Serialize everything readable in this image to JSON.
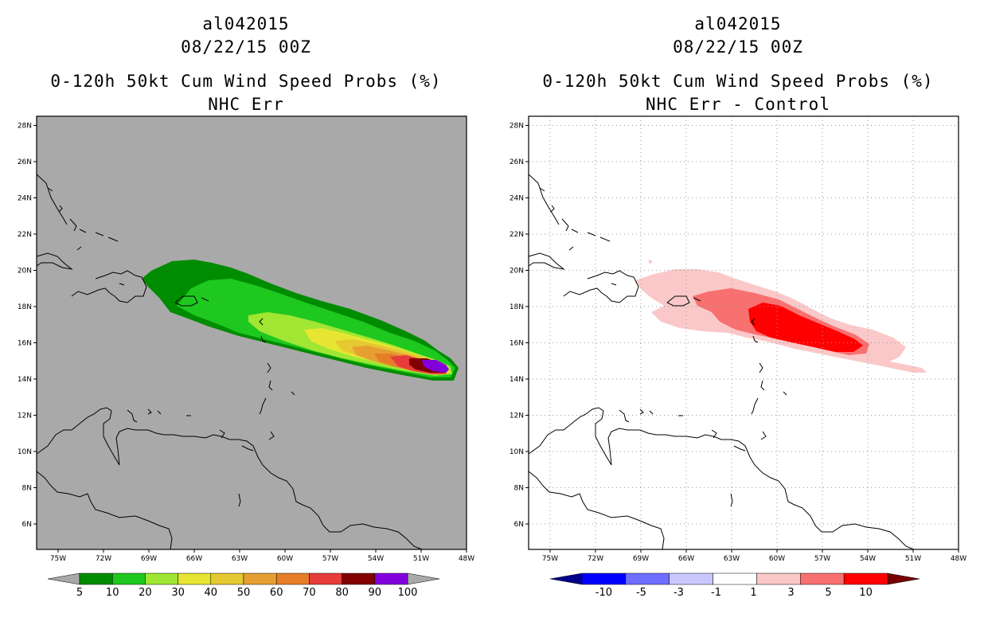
{
  "panels": [
    {
      "storm_id": "al042015",
      "datetime": "08/22/15 00Z",
      "product": "0-120h 50kt Cum Wind Speed Probs (%)",
      "subtitle": "NHC Err",
      "background_color": "#a9a9a9",
      "colorbar": {
        "labels": [
          "5",
          "10",
          "20",
          "30",
          "40",
          "50",
          "60",
          "70",
          "80",
          "90",
          "100"
        ],
        "colors": [
          "#008c00",
          "#1ec81e",
          "#a0e632",
          "#e6e632",
          "#e6c832",
          "#e6a032",
          "#e67e28",
          "#e63c3c",
          "#820000",
          "#8200dc"
        ],
        "end_low_color": "#a9a9a9",
        "end_high_color": "#a9a9a9"
      }
    },
    {
      "storm_id": "al042015",
      "datetime": "08/22/15 00Z",
      "product": "0-120h 50kt Cum Wind Speed Probs (%)",
      "subtitle": "NHC Err - Control",
      "background_color": "#ffffff",
      "colorbar": {
        "labels": [
          "-10",
          "-5",
          "-3",
          "-1",
          "1",
          "3",
          "5",
          "10"
        ],
        "colors": [
          "#0000ff",
          "#6e6eff",
          "#c8c8ff",
          "#ffffff",
          "#fac8c8",
          "#f87070",
          "#ff0000"
        ],
        "end_low_color": "#00008c",
        "end_high_color": "#780000"
      }
    }
  ],
  "axes": {
    "lat_labels": [
      "6N",
      "8N",
      "10N",
      "12N",
      "14N",
      "16N",
      "18N",
      "20N",
      "22N",
      "24N",
      "26N",
      "28N"
    ],
    "lon_labels": [
      "75W",
      "72W",
      "69W",
      "66W",
      "63W",
      "60W",
      "57W",
      "54W",
      "51W",
      "48W"
    ]
  }
}
